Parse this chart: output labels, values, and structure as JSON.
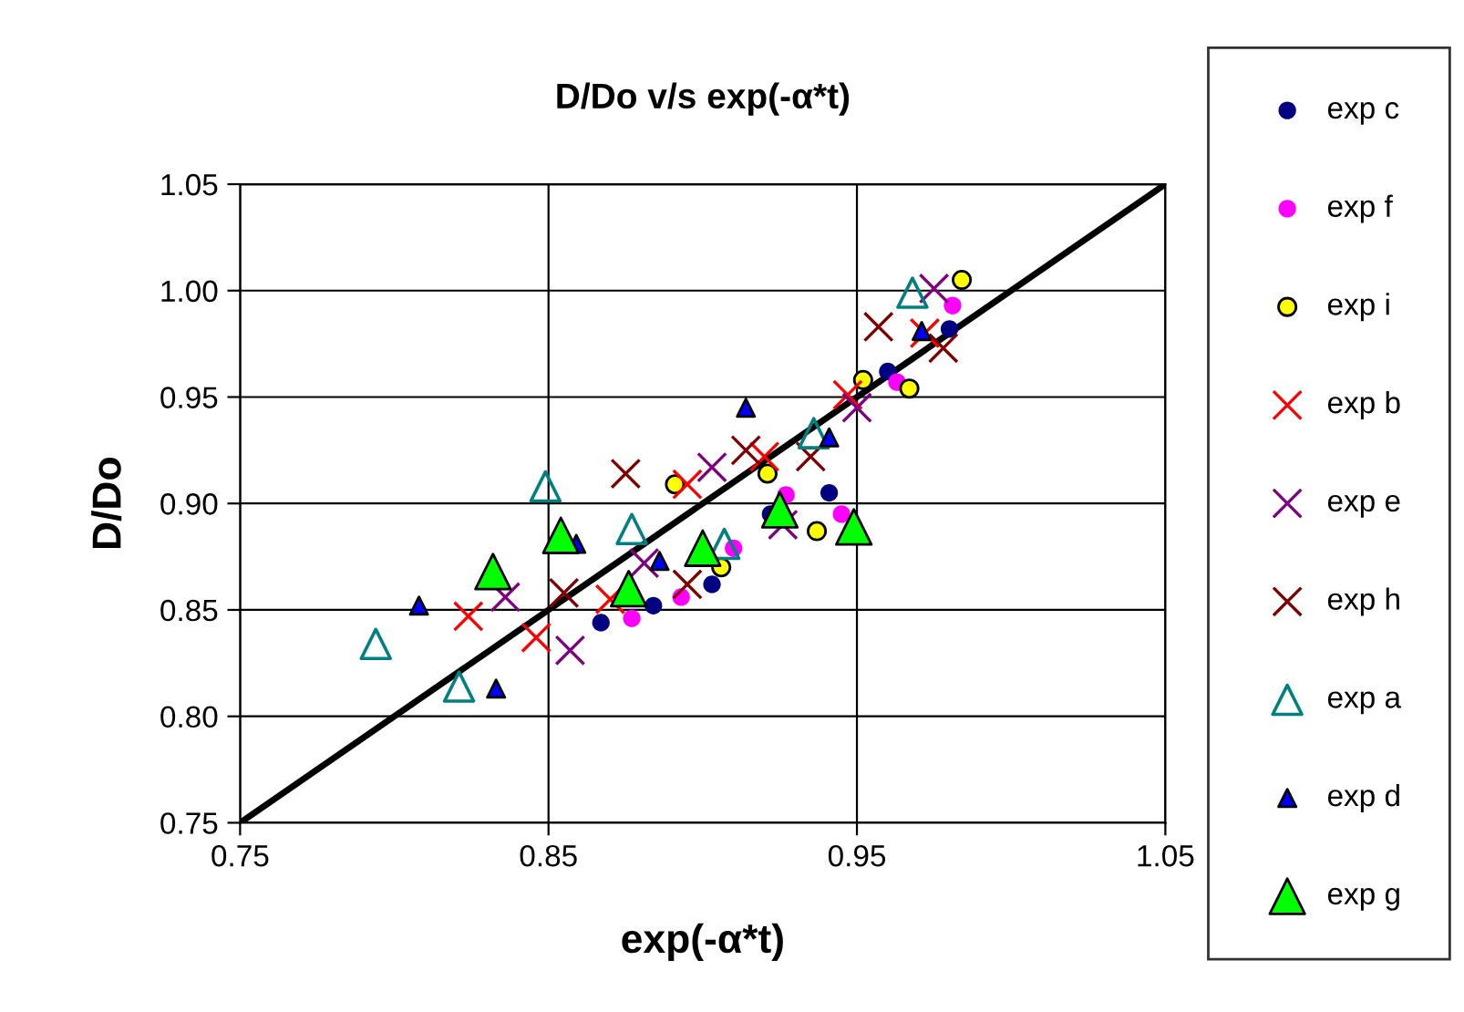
{
  "chart_data": {
    "type": "scatter",
    "title": "D/Do v/s exp(-α*t)",
    "xlabel": "exp(-α*t)",
    "ylabel": "D/Do",
    "xlim": [
      0.75,
      1.05
    ],
    "xticks": [
      {
        "value": 0.75,
        "label": "0.75"
      },
      {
        "value": 0.85,
        "label": "0.85"
      },
      {
        "value": 0.95,
        "label": "0.95"
      },
      {
        "value": 1.05,
        "label": "1.05"
      }
    ],
    "ylim": [
      0.75,
      1.05
    ],
    "yticks": [
      {
        "value": 0.75,
        "label": "0.75"
      },
      {
        "value": 0.8,
        "label": "0.80"
      },
      {
        "value": 0.85,
        "label": "0.85"
      },
      {
        "value": 0.9,
        "label": "0.90"
      },
      {
        "value": 0.95,
        "label": "0.95"
      },
      {
        "value": 1.0,
        "label": "1.00"
      },
      {
        "value": 1.05,
        "label": "1.05"
      }
    ],
    "grid": true,
    "legend": "right",
    "series": [
      {
        "type": "line",
        "color": "#000000",
        "marker": "none",
        "x": [
          0.75,
          1.05
        ],
        "values": [
          0.75,
          1.05
        ]
      },
      {
        "name": "exp c",
        "color": "#000080",
        "marker": "circle",
        "x": [
          0.867,
          0.884,
          0.903,
          0.922,
          0.941,
          0.96,
          0.98
        ],
        "values": [
          0.844,
          0.852,
          0.862,
          0.895,
          0.905,
          0.962,
          0.982
        ]
      },
      {
        "name": "exp f",
        "color": "#ff00ff",
        "marker": "circle",
        "x": [
          0.877,
          0.893,
          0.91,
          0.927,
          0.945,
          0.963,
          0.981
        ],
        "values": [
          0.846,
          0.856,
          0.879,
          0.904,
          0.895,
          0.957,
          0.993
        ]
      },
      {
        "name": "exp i",
        "color": "#ffff00",
        "marker": "circle",
        "x": [
          0.891,
          0.906,
          0.921,
          0.937,
          0.952,
          0.967,
          0.984
        ],
        "values": [
          0.909,
          0.87,
          0.914,
          0.887,
          0.958,
          0.954,
          1.005
        ]
      },
      {
        "name": "exp b",
        "color": "#ff0000",
        "marker": "cross",
        "x": [
          0.824,
          0.846,
          0.87,
          0.895,
          0.92,
          0.947,
          0.972
        ],
        "values": [
          0.847,
          0.837,
          0.855,
          0.909,
          0.922,
          0.951,
          0.98
        ]
      },
      {
        "name": "exp e",
        "color": "#800080",
        "marker": "cross",
        "x": [
          0.836,
          0.857,
          0.881,
          0.903,
          0.926,
          0.95,
          0.975
        ],
        "values": [
          0.856,
          0.831,
          0.872,
          0.917,
          0.89,
          0.945,
          1.001
        ]
      },
      {
        "name": "exp h",
        "color": "#800000",
        "marker": "cross",
        "x": [
          0.855,
          0.875,
          0.895,
          0.914,
          0.935,
          0.957,
          0.978
        ],
        "values": [
          0.858,
          0.914,
          0.862,
          0.925,
          0.922,
          0.983,
          0.973
        ]
      },
      {
        "name": "exp a",
        "color": "#008080",
        "marker": "triangle",
        "x": [
          0.794,
          0.821,
          0.849,
          0.877,
          0.907,
          0.936,
          0.968
        ],
        "values": [
          0.834,
          0.814,
          0.908,
          0.888,
          0.881,
          0.933,
          0.999
        ]
      },
      {
        "name": "exp d",
        "color": "#0000ff",
        "marker": "triangle",
        "x": [
          0.808,
          0.833,
          0.859,
          0.886,
          0.914,
          0.941,
          0.971
        ],
        "values": [
          0.852,
          0.813,
          0.881,
          0.873,
          0.945,
          0.931,
          0.981
        ]
      },
      {
        "name": "exp g",
        "color": "#00ff00",
        "marker": "triangle",
        "x": [
          0.832,
          0.854,
          0.876,
          0.9,
          0.925,
          0.949
        ],
        "values": [
          0.868,
          0.885,
          0.86,
          0.879,
          0.897,
          0.889
        ]
      }
    ]
  }
}
